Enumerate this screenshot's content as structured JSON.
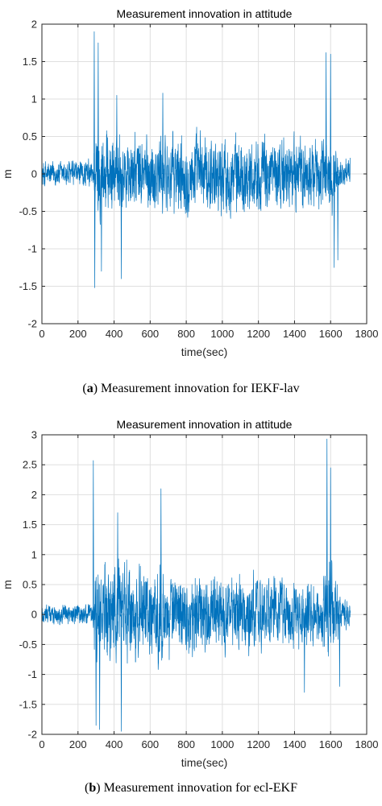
{
  "panels": [
    {
      "caption_letter": "a",
      "caption_text": "Measurement innovation for IEKF-lav",
      "chart_data": {
        "type": "line",
        "title": "Measurement innovation in attitude",
        "xlabel": "time(sec)",
        "ylabel": "m",
        "xlim": [
          0,
          1800
        ],
        "ylim": [
          -2,
          2
        ],
        "xticks": [
          0,
          200,
          400,
          600,
          800,
          1000,
          1200,
          1400,
          1600,
          1800
        ],
        "yticks": [
          -2,
          -1.5,
          -1,
          -0.5,
          0,
          0.5,
          1,
          1.5,
          2
        ],
        "grid": true,
        "color": "#0072BD",
        "x_range": [
          0,
          1710
        ],
        "envelope": [
          {
            "x": 0,
            "amp": 0.3
          },
          {
            "x": 280,
            "amp": 0.3
          },
          {
            "x": 300,
            "amp": 1.0
          },
          {
            "x": 400,
            "amp": 0.85
          },
          {
            "x": 1000,
            "amp": 0.8
          },
          {
            "x": 1550,
            "amp": 0.75
          },
          {
            "x": 1600,
            "amp": 0.9
          },
          {
            "x": 1640,
            "amp": 0.35
          },
          {
            "x": 1710,
            "amp": 0.3
          }
        ],
        "peaks": [
          {
            "x": 290,
            "y": 1.9
          },
          {
            "x": 293,
            "y": -1.52
          },
          {
            "x": 312,
            "y": 1.75
          },
          {
            "x": 330,
            "y": -1.3
          },
          {
            "x": 415,
            "y": 1.05
          },
          {
            "x": 440,
            "y": -1.4
          },
          {
            "x": 670,
            "y": 1.08
          },
          {
            "x": 1575,
            "y": 1.62
          },
          {
            "x": 1600,
            "y": 1.6
          },
          {
            "x": 1620,
            "y": -1.25
          },
          {
            "x": 1640,
            "y": -1.15
          }
        ]
      }
    },
    {
      "caption_letter": "b",
      "caption_text": "Measurement innovation for ecl-EKF",
      "chart_data": {
        "type": "line",
        "title": "Measurement innovation in attitude",
        "xlabel": "time(sec)",
        "ylabel": "m",
        "xlim": [
          0,
          1800
        ],
        "ylim": [
          -2,
          3
        ],
        "xticks": [
          0,
          200,
          400,
          600,
          800,
          1000,
          1200,
          1400,
          1600,
          1800
        ],
        "yticks": [
          -2,
          -1.5,
          -1,
          -0.5,
          0,
          0.5,
          1,
          1.5,
          2,
          2.5,
          3
        ],
        "grid": true,
        "color": "#0072BD",
        "x_range": [
          0,
          1710
        ],
        "envelope": [
          {
            "x": 0,
            "amp": 0.28
          },
          {
            "x": 280,
            "amp": 0.3
          },
          {
            "x": 300,
            "amp": 1.3
          },
          {
            "x": 460,
            "amp": 1.4
          },
          {
            "x": 700,
            "amp": 1.1
          },
          {
            "x": 1200,
            "amp": 0.95
          },
          {
            "x": 1550,
            "amp": 0.8
          },
          {
            "x": 1600,
            "amp": 1.6
          },
          {
            "x": 1650,
            "amp": 0.5
          },
          {
            "x": 1710,
            "amp": 0.35
          }
        ],
        "peaks": [
          {
            "x": 285,
            "y": 2.57
          },
          {
            "x": 300,
            "y": -1.85
          },
          {
            "x": 320,
            "y": -1.92
          },
          {
            "x": 420,
            "y": 1.7
          },
          {
            "x": 440,
            "y": -1.95
          },
          {
            "x": 660,
            "y": 2.1
          },
          {
            "x": 1455,
            "y": -1.3
          },
          {
            "x": 1580,
            "y": 2.93
          },
          {
            "x": 1600,
            "y": 2.45
          },
          {
            "x": 1650,
            "y": -1.2
          }
        ]
      }
    }
  ]
}
